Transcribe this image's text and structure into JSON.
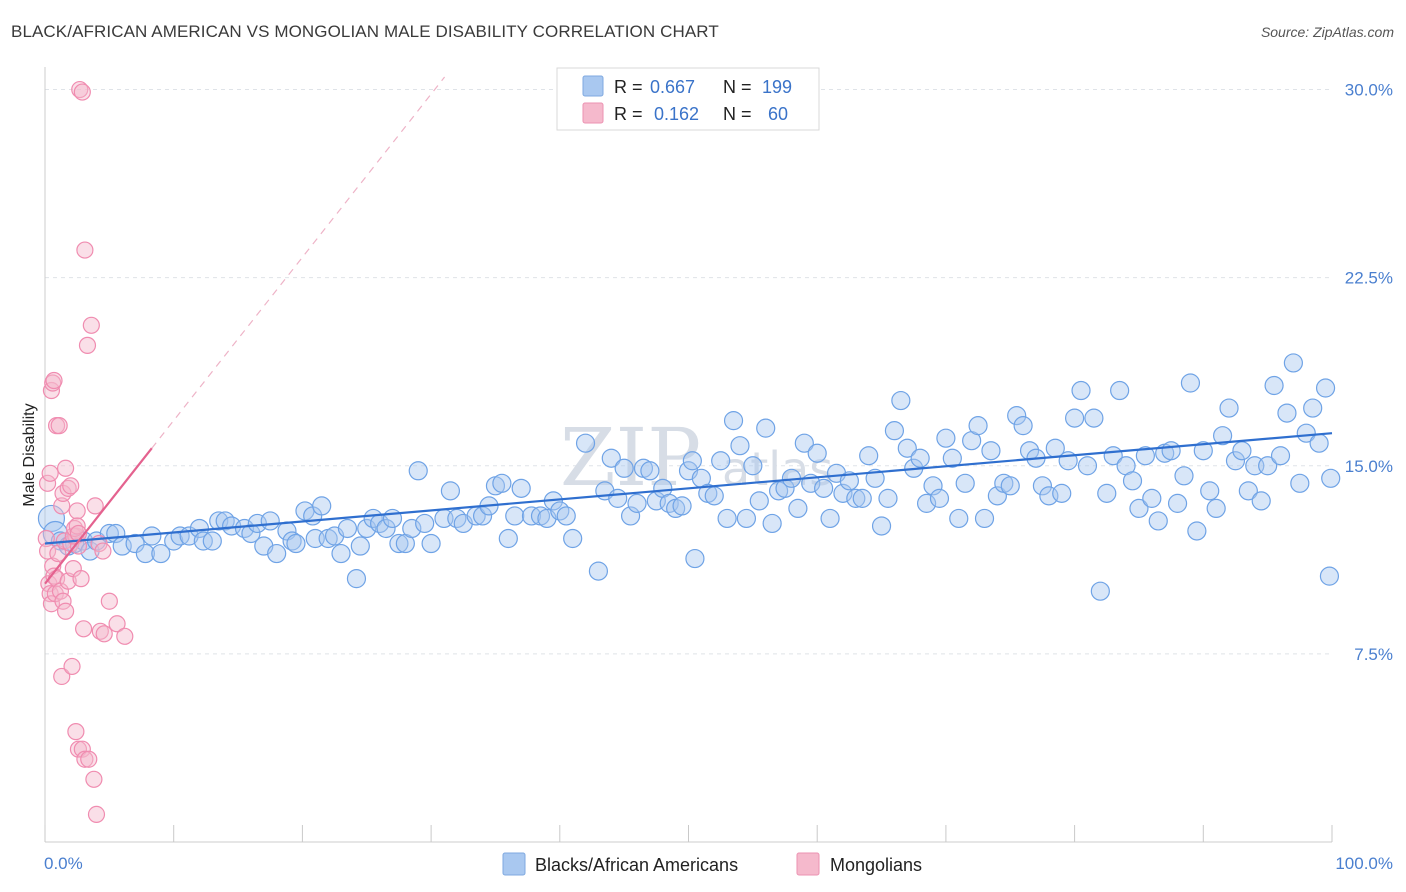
{
  "header": {
    "title": "BLACK/AFRICAN AMERICAN VS MONGOLIAN MALE DISABILITY CORRELATION CHART",
    "source": "Source: ZipAtlas.com"
  },
  "watermark": {
    "zip": "ZIP",
    "atlas": "atlas"
  },
  "legend": {
    "rows": [
      {
        "r_label": "R =",
        "r_value": "0.667",
        "n_label": "N =",
        "n_value": "199",
        "color": "#a9c8f0"
      },
      {
        "r_label": "R =",
        "r_value": "0.162",
        "n_label": "N =",
        "n_value": "60",
        "color": "#f5b9cc"
      }
    ]
  },
  "bottom_legend": [
    {
      "label": "Blacks/African Americans",
      "color": "#a9c8f0"
    },
    {
      "label": "Mongolians",
      "color": "#f5b9cc"
    }
  ],
  "chart_data": {
    "type": "scatter",
    "title": "BLACK/AFRICAN AMERICAN VS MONGOLIAN MALE DISABILITY CORRELATION CHART",
    "xlabel": "",
    "ylabel": "Male Disability",
    "xlim": [
      0,
      100
    ],
    "ylim": [
      0,
      30.5
    ],
    "x_tick_labels": [
      "0.0%",
      "100.0%"
    ],
    "y_ticks": [
      7.5,
      15.0,
      22.5,
      30.0
    ],
    "y_tick_labels": [
      "7.5%",
      "15.0%",
      "22.5%",
      "30.0%"
    ],
    "grid": true,
    "legend_position": "top-center",
    "series": [
      {
        "name": "Blacks/African Americans",
        "color": "#6fa3e6",
        "trend": {
          "x": [
            0,
            100
          ],
          "y": [
            11.9,
            16.3
          ]
        },
        "points": [
          [
            0.5,
            12.9
          ],
          [
            0.8,
            12.3
          ],
          [
            1.2,
            12.0
          ],
          [
            1.8,
            11.8
          ],
          [
            2.3,
            11.9
          ],
          [
            3.0,
            12.0
          ],
          [
            3.5,
            11.6
          ],
          [
            4.0,
            12.0
          ],
          [
            5.0,
            12.3
          ],
          [
            5.5,
            12.3
          ],
          [
            6.0,
            11.8
          ],
          [
            7.0,
            11.9
          ],
          [
            7.8,
            11.5
          ],
          [
            8.3,
            12.2
          ],
          [
            9.0,
            11.5
          ],
          [
            10.0,
            12.0
          ],
          [
            10.5,
            12.2
          ],
          [
            11.2,
            12.2
          ],
          [
            12.0,
            12.5
          ],
          [
            12.3,
            12.0
          ],
          [
            13.0,
            12.0
          ],
          [
            13.5,
            12.8
          ],
          [
            14.0,
            12.8
          ],
          [
            14.5,
            12.6
          ],
          [
            15.5,
            12.5
          ],
          [
            16.0,
            12.3
          ],
          [
            16.5,
            12.7
          ],
          [
            17.0,
            11.8
          ],
          [
            17.5,
            12.8
          ],
          [
            18.0,
            11.5
          ],
          [
            18.8,
            12.4
          ],
          [
            19.2,
            12.0
          ],
          [
            19.5,
            11.9
          ],
          [
            20.2,
            13.2
          ],
          [
            20.8,
            13.0
          ],
          [
            21.0,
            12.1
          ],
          [
            21.5,
            13.4
          ],
          [
            22.0,
            12.1
          ],
          [
            22.5,
            12.2
          ],
          [
            23.0,
            11.5
          ],
          [
            23.5,
            12.5
          ],
          [
            24.2,
            10.5
          ],
          [
            24.5,
            11.8
          ],
          [
            25.0,
            12.5
          ],
          [
            25.5,
            12.9
          ],
          [
            26.0,
            12.7
          ],
          [
            26.5,
            12.5
          ],
          [
            27.0,
            12.9
          ],
          [
            27.5,
            11.9
          ],
          [
            28.0,
            11.9
          ],
          [
            28.5,
            12.5
          ],
          [
            29.0,
            14.8
          ],
          [
            29.5,
            12.7
          ],
          [
            30.0,
            11.9
          ],
          [
            31.0,
            12.9
          ],
          [
            31.5,
            14.0
          ],
          [
            32.0,
            12.9
          ],
          [
            32.5,
            12.7
          ],
          [
            33.5,
            13.0
          ],
          [
            34.0,
            13.0
          ],
          [
            34.5,
            13.4
          ],
          [
            35.0,
            14.2
          ],
          [
            35.5,
            14.3
          ],
          [
            36.0,
            12.1
          ],
          [
            36.5,
            13.0
          ],
          [
            37.0,
            14.1
          ],
          [
            37.8,
            13.0
          ],
          [
            38.5,
            13.0
          ],
          [
            39.0,
            12.9
          ],
          [
            39.5,
            13.6
          ],
          [
            40.0,
            13.2
          ],
          [
            40.5,
            13.0
          ],
          [
            41.0,
            12.1
          ],
          [
            42.0,
            15.9
          ],
          [
            43.0,
            10.8
          ],
          [
            43.5,
            14.0
          ],
          [
            44.0,
            15.3
          ],
          [
            44.5,
            13.7
          ],
          [
            45.0,
            14.9
          ],
          [
            45.5,
            13.0
          ],
          [
            46.0,
            13.5
          ],
          [
            46.5,
            14.9
          ],
          [
            47.0,
            14.8
          ],
          [
            47.5,
            13.6
          ],
          [
            48.0,
            14.1
          ],
          [
            48.5,
            13.5
          ],
          [
            49.0,
            13.3
          ],
          [
            49.5,
            13.4
          ],
          [
            50.0,
            14.8
          ],
          [
            50.3,
            15.2
          ],
          [
            50.5,
            11.3
          ],
          [
            51.0,
            14.5
          ],
          [
            51.5,
            13.9
          ],
          [
            52.0,
            13.8
          ],
          [
            52.5,
            15.2
          ],
          [
            53.0,
            12.9
          ],
          [
            53.5,
            16.8
          ],
          [
            54.0,
            15.8
          ],
          [
            54.5,
            12.9
          ],
          [
            55.0,
            15.0
          ],
          [
            55.5,
            13.6
          ],
          [
            56.0,
            16.5
          ],
          [
            56.5,
            12.7
          ],
          [
            57.0,
            14.0
          ],
          [
            57.5,
            14.1
          ],
          [
            58.0,
            14.5
          ],
          [
            58.5,
            13.3
          ],
          [
            59.0,
            15.9
          ],
          [
            59.5,
            14.3
          ],
          [
            60.0,
            15.5
          ],
          [
            60.5,
            14.1
          ],
          [
            61.0,
            12.9
          ],
          [
            61.5,
            14.7
          ],
          [
            62.0,
            13.9
          ],
          [
            62.5,
            14.4
          ],
          [
            63.0,
            13.7
          ],
          [
            63.5,
            13.7
          ],
          [
            64.0,
            15.4
          ],
          [
            64.5,
            14.5
          ],
          [
            65.0,
            12.6
          ],
          [
            65.5,
            13.7
          ],
          [
            66.0,
            16.4
          ],
          [
            66.5,
            17.6
          ],
          [
            67.0,
            15.7
          ],
          [
            67.5,
            14.9
          ],
          [
            68.0,
            15.3
          ],
          [
            68.5,
            13.5
          ],
          [
            69.0,
            14.2
          ],
          [
            69.5,
            13.7
          ],
          [
            70.0,
            16.1
          ],
          [
            70.5,
            15.3
          ],
          [
            71.0,
            12.9
          ],
          [
            71.5,
            14.3
          ],
          [
            72.0,
            16.0
          ],
          [
            72.5,
            16.6
          ],
          [
            73.0,
            12.9
          ],
          [
            73.5,
            15.6
          ],
          [
            74.0,
            13.8
          ],
          [
            74.5,
            14.3
          ],
          [
            75.0,
            14.2
          ],
          [
            75.5,
            17.0
          ],
          [
            76.0,
            16.6
          ],
          [
            76.5,
            15.6
          ],
          [
            77.0,
            15.3
          ],
          [
            77.5,
            14.2
          ],
          [
            78.0,
            13.8
          ],
          [
            78.5,
            15.7
          ],
          [
            79.0,
            13.9
          ],
          [
            79.5,
            15.2
          ],
          [
            80.0,
            16.9
          ],
          [
            80.5,
            18.0
          ],
          [
            81.0,
            15.0
          ],
          [
            81.5,
            16.9
          ],
          [
            82.0,
            10.0
          ],
          [
            82.5,
            13.9
          ],
          [
            83.0,
            15.4
          ],
          [
            83.5,
            18.0
          ],
          [
            84.0,
            15.0
          ],
          [
            84.5,
            14.4
          ],
          [
            85.0,
            13.3
          ],
          [
            85.5,
            15.4
          ],
          [
            86.0,
            13.7
          ],
          [
            86.5,
            12.8
          ],
          [
            87.0,
            15.5
          ],
          [
            87.5,
            15.6
          ],
          [
            88.0,
            13.5
          ],
          [
            88.5,
            14.6
          ],
          [
            89.0,
            18.3
          ],
          [
            89.5,
            12.4
          ],
          [
            90.0,
            15.6
          ],
          [
            90.5,
            14.0
          ],
          [
            91.0,
            13.3
          ],
          [
            91.5,
            16.2
          ],
          [
            92.0,
            17.3
          ],
          [
            92.5,
            15.2
          ],
          [
            93.0,
            15.6
          ],
          [
            93.5,
            14.0
          ],
          [
            94.0,
            15.0
          ],
          [
            94.5,
            13.6
          ],
          [
            95.0,
            15.0
          ],
          [
            95.5,
            18.2
          ],
          [
            96.0,
            15.4
          ],
          [
            96.5,
            17.1
          ],
          [
            97.0,
            19.1
          ],
          [
            97.5,
            14.3
          ],
          [
            98.0,
            16.3
          ],
          [
            98.5,
            17.3
          ],
          [
            99.0,
            15.9
          ],
          [
            99.5,
            18.1
          ],
          [
            99.8,
            10.6
          ],
          [
            99.9,
            14.5
          ]
        ]
      },
      {
        "name": "Mongolians",
        "color": "#f08cb0",
        "trend": {
          "x": [
            0,
            8.3
          ],
          "y": [
            10.3,
            15.7
          ]
        },
        "points": [
          [
            0.1,
            12.1
          ],
          [
            0.2,
            11.6
          ],
          [
            0.3,
            10.3
          ],
          [
            0.4,
            9.9
          ],
          [
            0.5,
            9.5
          ],
          [
            0.6,
            11.0
          ],
          [
            0.7,
            10.6
          ],
          [
            0.8,
            9.9
          ],
          [
            0.9,
            10.5
          ],
          [
            1.0,
            11.5
          ],
          [
            1.2,
            10.0
          ],
          [
            1.4,
            9.6
          ],
          [
            1.5,
            12.0
          ],
          [
            1.6,
            9.2
          ],
          [
            1.8,
            10.4
          ],
          [
            2.0,
            11.9
          ],
          [
            2.2,
            10.9
          ],
          [
            2.4,
            12.2
          ],
          [
            2.5,
            13.2
          ],
          [
            2.6,
            11.8
          ],
          [
            2.8,
            10.5
          ],
          [
            3.0,
            8.5
          ],
          [
            0.2,
            14.3
          ],
          [
            0.4,
            14.7
          ],
          [
            0.5,
            18.0
          ],
          [
            0.6,
            18.3
          ],
          [
            0.7,
            18.4
          ],
          [
            0.9,
            16.6
          ],
          [
            1.1,
            16.6
          ],
          [
            1.3,
            13.4
          ],
          [
            1.4,
            13.9
          ],
          [
            1.6,
            14.9
          ],
          [
            1.8,
            14.1
          ],
          [
            2.0,
            14.2
          ],
          [
            2.2,
            12.2
          ],
          [
            2.3,
            12.5
          ],
          [
            2.5,
            12.6
          ],
          [
            2.6,
            12.3
          ],
          [
            2.7,
            30.0
          ],
          [
            2.9,
            29.9
          ],
          [
            3.1,
            23.6
          ],
          [
            3.3,
            19.8
          ],
          [
            3.6,
            20.6
          ],
          [
            3.9,
            13.4
          ],
          [
            4.2,
            11.9
          ],
          [
            4.5,
            11.6
          ],
          [
            1.3,
            6.6
          ],
          [
            2.1,
            7.0
          ],
          [
            2.4,
            4.4
          ],
          [
            2.6,
            3.7
          ],
          [
            2.9,
            3.7
          ],
          [
            3.1,
            3.3
          ],
          [
            3.4,
            3.3
          ],
          [
            3.8,
            2.5
          ],
          [
            4.0,
            1.1
          ],
          [
            4.3,
            8.4
          ],
          [
            4.6,
            8.3
          ],
          [
            5.0,
            9.6
          ],
          [
            5.6,
            8.7
          ],
          [
            6.2,
            8.2
          ]
        ]
      }
    ]
  }
}
